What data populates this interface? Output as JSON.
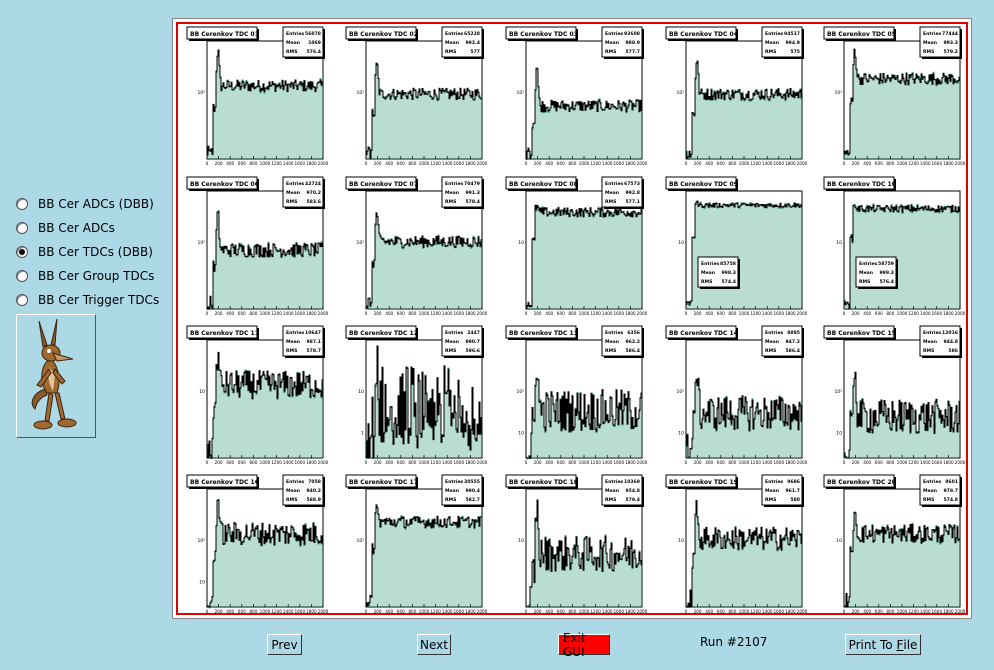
{
  "radio_options": [
    {
      "label": "BB Cer ADCs (DBB)",
      "selected": false
    },
    {
      "label": "BB Cer ADCs",
      "selected": false
    },
    {
      "label": "BB Cer TDCs (DBB)",
      "selected": true
    },
    {
      "label": "BB Cer Group TDCs",
      "selected": false
    },
    {
      "label": "BB Cer Trigger TDCs",
      "selected": false
    }
  ],
  "buttons": {
    "prev": "Prev",
    "next": "Next",
    "exit": "Exit GUI",
    "print_prefix": "Print To ",
    "print_underlined": "F",
    "print_suffix": "ile"
  },
  "run_label": "Run #2107",
  "colors": {
    "background": "#add8e6",
    "canvas_border": "#e00000",
    "hist_fill": "#3a9f7a",
    "exit_button": "#ff0000"
  },
  "chart_data": [
    {
      "type": "histogram",
      "title": "BB Cerenkov TDC 01",
      "stats": {
        "Entries": "56078",
        "Mean": "1069",
        "RMS": "576.4"
      },
      "x_ticks": [
        "0",
        "200",
        "400",
        "600",
        "800",
        "1000",
        "1200",
        "1400",
        "1600",
        "1800",
        "2000"
      ],
      "y_ticks": [
        "10²"
      ],
      "log_y": true
    },
    {
      "type": "histogram",
      "title": "BB Cerenkov TDC 02",
      "stats": {
        "Entries": "65228",
        "Mean": "992.4",
        "RMS": "577"
      },
      "x_ticks": [
        "0",
        "200",
        "400",
        "600",
        "800",
        "1000",
        "1200",
        "1400",
        "1600",
        "1800",
        "2000"
      ],
      "y_ticks": [
        "10²"
      ],
      "log_y": true
    },
    {
      "type": "histogram",
      "title": "BB Cerenkov TDC 03",
      "stats": {
        "Entries": "92608",
        "Mean": "988.9",
        "RMS": "577.7"
      },
      "x_ticks": [
        "0",
        "200",
        "400",
        "600",
        "800",
        "1000",
        "1200",
        "1400",
        "1600",
        "1800",
        "2000"
      ],
      "y_ticks": [
        "10²"
      ],
      "log_y": true
    },
    {
      "type": "histogram",
      "title": "BB Cerenkov TDC 04",
      "stats": {
        "Entries": "94517",
        "Mean": "994.9",
        "RMS": "575"
      },
      "x_ticks": [
        "0",
        "200",
        "400",
        "600",
        "800",
        "1000",
        "1200",
        "1400",
        "1600",
        "1800",
        "2000"
      ],
      "y_ticks": [
        "10²"
      ],
      "log_y": true
    },
    {
      "type": "histogram",
      "title": "BB Cerenkov TDC 05",
      "stats": {
        "Entries": "77444",
        "Mean": "993.3",
        "RMS": "579.2"
      },
      "x_ticks": [
        "0",
        "200",
        "400",
        "600",
        "800",
        "1000",
        "1200",
        "1400",
        "1600",
        "1800",
        "2000"
      ],
      "y_ticks": [
        "10²"
      ],
      "log_y": true
    },
    {
      "type": "histogram",
      "title": "BB Cerenkov TDC 06",
      "stats": {
        "Entries": "42724",
        "Mean": "970.2",
        "RMS": "583.6"
      },
      "x_ticks": [
        "0",
        "200",
        "400",
        "600",
        "800",
        "1000",
        "1200",
        "1400",
        "1600",
        "1800",
        "2000"
      ],
      "y_ticks": [
        "10²"
      ],
      "log_y": true
    },
    {
      "type": "histogram",
      "title": "BB Cerenkov TDC 07",
      "stats": {
        "Entries": "70479",
        "Mean": "991.3",
        "RMS": "578.4"
      },
      "x_ticks": [
        "0",
        "200",
        "400",
        "600",
        "800",
        "1000",
        "1200",
        "1400",
        "1600",
        "1800",
        "2000"
      ],
      "y_ticks": [
        "10²"
      ],
      "log_y": true
    },
    {
      "type": "histogram",
      "title": "BB Cerenkov TDC 08",
      "stats": {
        "Entries": "67573",
        "Mean": "992.8",
        "RMS": "577.1"
      },
      "x_ticks": [
        "0",
        "200",
        "400",
        "600",
        "800",
        "1000",
        "1200",
        "1400",
        "1600",
        "1800",
        "2000"
      ],
      "y_ticks": [
        "10"
      ],
      "log_y": true
    },
    {
      "type": "histogram",
      "title": "BB Cerenkov TDC 09",
      "stats": {
        "Entries": "85758",
        "Mean": "998.3",
        "RMS": "574.4"
      },
      "x_ticks": [
        "0",
        "200",
        "400",
        "600",
        "800",
        "1000",
        "1200",
        "1400",
        "1600",
        "1800",
        "2000"
      ],
      "y_ticks": [
        "10"
      ],
      "log_y": true
    },
    {
      "type": "histogram",
      "title": "BB Cerenkov TDC 10",
      "stats": {
        "Entries": "58759",
        "Mean": "999.3",
        "RMS": "576.4"
      },
      "x_ticks": [
        "0",
        "200",
        "400",
        "600",
        "800",
        "1000",
        "1200",
        "1400",
        "1600",
        "1800",
        "2000"
      ],
      "y_ticks": [
        "10"
      ],
      "log_y": true
    },
    {
      "type": "histogram",
      "title": "BB Cerenkov TDC 11",
      "stats": {
        "Entries": "10647",
        "Mean": "987.1",
        "RMS": "578.7"
      },
      "x_ticks": [
        "0",
        "200",
        "400",
        "600",
        "800",
        "1000",
        "1200",
        "1400",
        "1600",
        "1800",
        "2000"
      ],
      "y_ticks": [
        "10"
      ],
      "log_y": true
    },
    {
      "type": "histogram",
      "title": "BB Cerenkov TDC 12",
      "stats": {
        "Entries": "2447",
        "Mean": "890.7",
        "RMS": "596.6"
      },
      "x_ticks": [
        "0",
        "200",
        "400",
        "600",
        "800",
        "1000",
        "1200",
        "1400",
        "1600",
        "1800",
        "2000"
      ],
      "y_ticks": [
        "10",
        "1"
      ],
      "log_y": true
    },
    {
      "type": "histogram",
      "title": "BB Cerenkov TDC 13",
      "stats": {
        "Entries": "6356",
        "Mean": "962.2",
        "RMS": "586.4"
      },
      "x_ticks": [
        "0",
        "200",
        "400",
        "600",
        "800",
        "1000",
        "1200",
        "1400",
        "1600",
        "1800",
        "2000"
      ],
      "y_ticks": [
        "10²",
        "10"
      ],
      "log_y": true
    },
    {
      "type": "histogram",
      "title": "BB Cerenkov TDC 14",
      "stats": {
        "Entries": "8895",
        "Mean": "947.2",
        "RMS": "586.4"
      },
      "x_ticks": [
        "0",
        "200",
        "400",
        "600",
        "800",
        "1000",
        "1200",
        "1400",
        "1600",
        "1800",
        "2000"
      ],
      "y_ticks": [
        "10²",
        "10"
      ],
      "log_y": true
    },
    {
      "type": "histogram",
      "title": "BB Cerenkov TDC 15",
      "stats": {
        "Entries": "12016",
        "Mean": "944.8",
        "RMS": "586"
      },
      "x_ticks": [
        "0",
        "200",
        "400",
        "600",
        "800",
        "1000",
        "1200",
        "1400",
        "1600",
        "1800",
        "2000"
      ],
      "y_ticks": [
        "10²",
        "10"
      ],
      "log_y": true
    },
    {
      "type": "histogram",
      "title": "BB Cerenkov TDC 16",
      "stats": {
        "Entries": "7058",
        "Mean": "940.2",
        "RMS": "588.9"
      },
      "x_ticks": [
        "0",
        "200",
        "400",
        "600",
        "800",
        "1000",
        "1200",
        "1400",
        "1600",
        "1800",
        "2000"
      ],
      "y_ticks": [
        "10²",
        "10"
      ],
      "log_y": true
    },
    {
      "type": "histogram",
      "title": "BB Cerenkov TDC 17",
      "stats": {
        "Entries": "30555",
        "Mean": "990.4",
        "RMS": "582.7"
      },
      "x_ticks": [
        "0",
        "200",
        "400",
        "600",
        "800",
        "1000",
        "1200",
        "1400",
        "1600",
        "1800",
        "2000"
      ],
      "y_ticks": [
        "10²"
      ],
      "log_y": true
    },
    {
      "type": "histogram",
      "title": "BB Cerenkov TDC 18",
      "stats": {
        "Entries": "10369",
        "Mean": "954.8",
        "RMS": "579.4"
      },
      "x_ticks": [
        "0",
        "200",
        "400",
        "600",
        "800",
        "1000",
        "1200",
        "1400",
        "1600",
        "1800",
        "2000"
      ],
      "y_ticks": [
        "10"
      ],
      "log_y": true
    },
    {
      "type": "histogram",
      "title": "BB Cerenkov TDC 19",
      "stats": {
        "Entries": "9686",
        "Mean": "961.7",
        "RMS": "580"
      },
      "x_ticks": [
        "0",
        "200",
        "400",
        "600",
        "800",
        "1000",
        "1200",
        "1400",
        "1600",
        "1800",
        "2000"
      ],
      "y_ticks": [
        "10"
      ],
      "log_y": true
    },
    {
      "type": "histogram",
      "title": "BB Cerenkov TDC 20",
      "stats": {
        "Entries": "8601",
        "Mean": "978.7",
        "RMS": "574.8"
      },
      "x_ticks": [
        "0",
        "200",
        "400",
        "600",
        "800",
        "1000",
        "1200",
        "1400",
        "1600",
        "1800",
        "2000"
      ],
      "y_ticks": [
        "10"
      ],
      "log_y": true
    }
  ]
}
